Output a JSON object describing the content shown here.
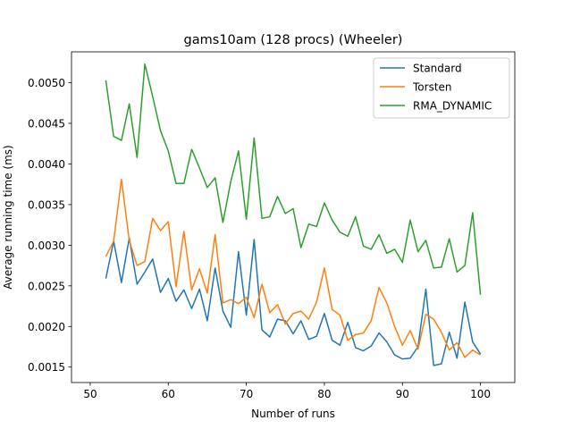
{
  "chart_data": {
    "type": "line",
    "title": "gams10am (128 procs) (Wheeler)",
    "xlabel": "Number of runs",
    "ylabel": "Average running time (ms)",
    "xlim": [
      47.6,
      104.4
    ],
    "ylim": [
      0.00131,
      0.00538
    ],
    "xticks": [
      50,
      60,
      70,
      80,
      90,
      100
    ],
    "xtick_labels": [
      "50",
      "60",
      "70",
      "80",
      "90",
      "100"
    ],
    "yticks": [
      0.0015,
      0.002,
      0.0025,
      0.003,
      0.0035,
      0.004,
      0.0045,
      0.005
    ],
    "ytick_labels": [
      "0.0015",
      "0.0020",
      "0.0025",
      "0.0030",
      "0.0035",
      "0.0040",
      "0.0045",
      "0.0050"
    ],
    "grid": false,
    "legend_position": "top-right",
    "x": [
      52,
      53,
      54,
      55,
      56,
      57,
      58,
      59,
      60,
      61,
      62,
      63,
      64,
      65,
      66,
      67,
      68,
      69,
      70,
      71,
      72,
      73,
      74,
      75,
      76,
      77,
      78,
      79,
      80,
      81,
      82,
      83,
      84,
      85,
      86,
      87,
      88,
      89,
      90,
      91,
      92,
      93,
      94,
      95,
      96,
      97,
      98,
      99,
      100
    ],
    "series": [
      {
        "name": "Standard",
        "color": "#1f77b4",
        "values": [
          0.00259,
          0.00305,
          0.00254,
          0.00309,
          0.00252,
          0.00267,
          0.00283,
          0.00242,
          0.00259,
          0.00231,
          0.00245,
          0.00222,
          0.00246,
          0.00207,
          0.00272,
          0.00219,
          0.00199,
          0.00292,
          0.00214,
          0.00307,
          0.00196,
          0.00187,
          0.00209,
          0.00207,
          0.00191,
          0.00207,
          0.00184,
          0.00188,
          0.00216,
          0.00183,
          0.00177,
          0.00205,
          0.00174,
          0.0017,
          0.00176,
          0.00192,
          0.00181,
          0.00165,
          0.0016,
          0.00161,
          0.00175,
          0.00246,
          0.00152,
          0.00154,
          0.00193,
          0.00161,
          0.0023,
          0.00181,
          0.00166
        ]
      },
      {
        "name": "Torsten",
        "color": "#ff7f0e",
        "values": [
          0.00286,
          0.00305,
          0.00381,
          0.00306,
          0.00275,
          0.0028,
          0.00333,
          0.00318,
          0.00329,
          0.00249,
          0.00317,
          0.00245,
          0.00271,
          0.00241,
          0.00313,
          0.00229,
          0.00233,
          0.00228,
          0.00236,
          0.00211,
          0.00252,
          0.00217,
          0.00227,
          0.00203,
          0.00216,
          0.00219,
          0.00209,
          0.0023,
          0.00272,
          0.00221,
          0.00214,
          0.00183,
          0.0019,
          0.00192,
          0.00207,
          0.00248,
          0.00229,
          0.002,
          0.00177,
          0.00195,
          0.00172,
          0.00215,
          0.00209,
          0.00193,
          0.00171,
          0.0018,
          0.00162,
          0.00171,
          0.00165
        ]
      },
      {
        "name": "RMA_DYNAMIC",
        "color": "#2ca02c",
        "values": [
          0.00503,
          0.00434,
          0.00429,
          0.00474,
          0.00408,
          0.00523,
          0.00483,
          0.00441,
          0.00416,
          0.00376,
          0.00376,
          0.00418,
          0.00395,
          0.00371,
          0.00383,
          0.00328,
          0.00378,
          0.00416,
          0.00332,
          0.00432,
          0.00333,
          0.00335,
          0.0036,
          0.00339,
          0.00345,
          0.00297,
          0.00326,
          0.00323,
          0.00352,
          0.00331,
          0.00316,
          0.00311,
          0.00335,
          0.00299,
          0.00295,
          0.00313,
          0.0029,
          0.00295,
          0.00279,
          0.00331,
          0.00292,
          0.00306,
          0.00272,
          0.00273,
          0.00308,
          0.00267,
          0.00275,
          0.0034,
          0.00239
        ]
      }
    ]
  }
}
